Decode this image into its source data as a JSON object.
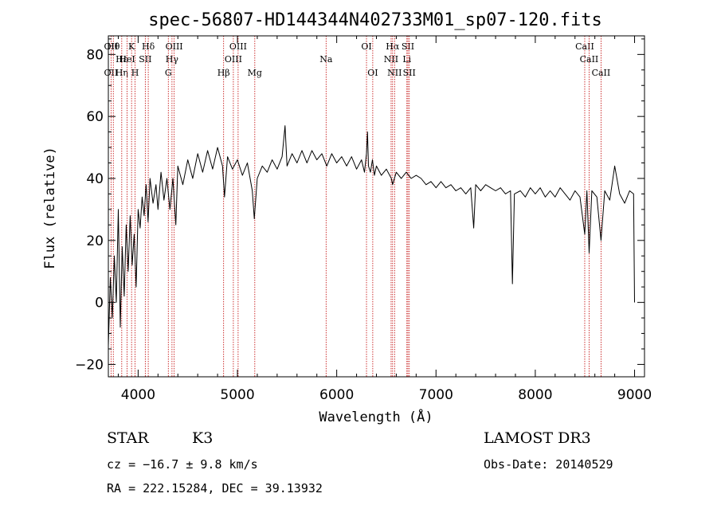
{
  "chart_data": {
    "type": "line",
    "title": "spec-56807-HD144344N402733M01_sp07-120.fits",
    "xlabel": "Wavelength (Å)",
    "ylabel": "Flux (relative)",
    "xlim": [
      3700,
      9100
    ],
    "ylim": [
      -24,
      86
    ],
    "xticks": [
      4000,
      5000,
      6000,
      7000,
      8000,
      9000
    ],
    "yticks": [
      -20,
      0,
      20,
      40,
      60,
      80
    ],
    "line_color": "#000000",
    "marker_color": "#c00000",
    "series": [
      {
        "name": "flux",
        "points": [
          [
            3700,
            -14
          ],
          [
            3720,
            8
          ],
          [
            3740,
            -5
          ],
          [
            3760,
            15
          ],
          [
            3780,
            0
          ],
          [
            3800,
            30
          ],
          [
            3820,
            -8
          ],
          [
            3840,
            18
          ],
          [
            3860,
            2
          ],
          [
            3880,
            25
          ],
          [
            3900,
            10
          ],
          [
            3920,
            28
          ],
          [
            3940,
            12
          ],
          [
            3960,
            22
          ],
          [
            3980,
            5
          ],
          [
            4000,
            30
          ],
          [
            4020,
            24
          ],
          [
            4040,
            34
          ],
          [
            4060,
            28
          ],
          [
            4080,
            38
          ],
          [
            4100,
            26
          ],
          [
            4120,
            40
          ],
          [
            4150,
            32
          ],
          [
            4180,
            38
          ],
          [
            4200,
            30
          ],
          [
            4230,
            42
          ],
          [
            4260,
            33
          ],
          [
            4290,
            40
          ],
          [
            4320,
            30
          ],
          [
            4350,
            40
          ],
          [
            4380,
            25
          ],
          [
            4400,
            44
          ],
          [
            4450,
            38
          ],
          [
            4500,
            46
          ],
          [
            4550,
            40
          ],
          [
            4600,
            48
          ],
          [
            4650,
            42
          ],
          [
            4700,
            49
          ],
          [
            4750,
            43
          ],
          [
            4800,
            50
          ],
          [
            4850,
            44
          ],
          [
            4870,
            34
          ],
          [
            4900,
            47
          ],
          [
            4950,
            43
          ],
          [
            5000,
            46
          ],
          [
            5050,
            41
          ],
          [
            5100,
            45
          ],
          [
            5150,
            36
          ],
          [
            5170,
            27
          ],
          [
            5200,
            40
          ],
          [
            5250,
            44
          ],
          [
            5300,
            42
          ],
          [
            5350,
            46
          ],
          [
            5400,
            43
          ],
          [
            5450,
            47
          ],
          [
            5480,
            57
          ],
          [
            5500,
            44
          ],
          [
            5550,
            48
          ],
          [
            5600,
            45
          ],
          [
            5650,
            49
          ],
          [
            5700,
            45
          ],
          [
            5750,
            49
          ],
          [
            5800,
            46
          ],
          [
            5850,
            48
          ],
          [
            5900,
            44
          ],
          [
            5950,
            48
          ],
          [
            6000,
            45
          ],
          [
            6050,
            47
          ],
          [
            6100,
            44
          ],
          [
            6150,
            47
          ],
          [
            6200,
            43
          ],
          [
            6250,
            46
          ],
          [
            6280,
            42
          ],
          [
            6300,
            48
          ],
          [
            6310,
            55
          ],
          [
            6320,
            44
          ],
          [
            6340,
            42
          ],
          [
            6360,
            46
          ],
          [
            6380,
            41
          ],
          [
            6400,
            44
          ],
          [
            6450,
            41
          ],
          [
            6500,
            43
          ],
          [
            6550,
            40
          ],
          [
            6563,
            38
          ],
          [
            6600,
            42
          ],
          [
            6650,
            40
          ],
          [
            6700,
            42
          ],
          [
            6750,
            40
          ],
          [
            6800,
            41
          ],
          [
            6850,
            40
          ],
          [
            6900,
            38
          ],
          [
            6950,
            39
          ],
          [
            7000,
            37
          ],
          [
            7050,
            39
          ],
          [
            7100,
            37
          ],
          [
            7150,
            38
          ],
          [
            7200,
            36
          ],
          [
            7250,
            37
          ],
          [
            7300,
            35
          ],
          [
            7350,
            37
          ],
          [
            7380,
            24
          ],
          [
            7400,
            38
          ],
          [
            7450,
            36
          ],
          [
            7500,
            38
          ],
          [
            7550,
            37
          ],
          [
            7600,
            36
          ],
          [
            7650,
            37
          ],
          [
            7700,
            35
          ],
          [
            7750,
            36
          ],
          [
            7770,
            6
          ],
          [
            7790,
            35
          ],
          [
            7850,
            36
          ],
          [
            7900,
            34
          ],
          [
            7950,
            37
          ],
          [
            8000,
            35
          ],
          [
            8050,
            37
          ],
          [
            8100,
            34
          ],
          [
            8150,
            36
          ],
          [
            8200,
            34
          ],
          [
            8250,
            37
          ],
          [
            8300,
            35
          ],
          [
            8350,
            33
          ],
          [
            8400,
            36
          ],
          [
            8450,
            34
          ],
          [
            8498,
            22
          ],
          [
            8520,
            36
          ],
          [
            8542,
            16
          ],
          [
            8570,
            36
          ],
          [
            8620,
            34
          ],
          [
            8662,
            20
          ],
          [
            8700,
            36
          ],
          [
            8750,
            33
          ],
          [
            8800,
            44
          ],
          [
            8850,
            35
          ],
          [
            8900,
            32
          ],
          [
            8950,
            36
          ],
          [
            8990,
            35
          ],
          [
            9000,
            0
          ]
        ]
      }
    ],
    "line_markers": [
      {
        "wavelength": 3727,
        "top": "OII",
        "mid": "",
        "bot": "OII"
      },
      {
        "wavelength": 3750,
        "top": "Hθ",
        "mid": "",
        "bot": ""
      },
      {
        "wavelength": 3835,
        "top": "",
        "mid": "Hε",
        "bot": "Hη"
      },
      {
        "wavelength": 3889,
        "top": "",
        "mid": "HeI",
        "bot": ""
      },
      {
        "wavelength": 3934,
        "top": "K",
        "mid": "",
        "bot": ""
      },
      {
        "wavelength": 3969,
        "top": "",
        "mid": "",
        "bot": "H"
      },
      {
        "wavelength": 4072,
        "top": "",
        "mid": "SII",
        "bot": ""
      },
      {
        "wavelength": 4102,
        "top": "Hδ",
        "mid": "",
        "bot": ""
      },
      {
        "wavelength": 4304,
        "top": "",
        "mid": "",
        "bot": "G"
      },
      {
        "wavelength": 4341,
        "top": "",
        "mid": "Hγ",
        "bot": ""
      },
      {
        "wavelength": 4363,
        "top": "OIII",
        "mid": "",
        "bot": ""
      },
      {
        "wavelength": 4861,
        "top": "",
        "mid": "",
        "bot": "Hβ"
      },
      {
        "wavelength": 4959,
        "top": "",
        "mid": "OIII",
        "bot": ""
      },
      {
        "wavelength": 5007,
        "top": "OIII",
        "mid": "",
        "bot": ""
      },
      {
        "wavelength": 5175,
        "top": "",
        "mid": "",
        "bot": "Mg"
      },
      {
        "wavelength": 5893,
        "top": "",
        "mid": "Na",
        "bot": ""
      },
      {
        "wavelength": 6300,
        "top": "OI",
        "mid": "",
        "bot": ""
      },
      {
        "wavelength": 6363,
        "top": "",
        "mid": "",
        "bot": "OI"
      },
      {
        "wavelength": 6548,
        "top": "",
        "mid": "NII",
        "bot": ""
      },
      {
        "wavelength": 6563,
        "top": "Hα",
        "mid": "",
        "bot": ""
      },
      {
        "wavelength": 6583,
        "top": "",
        "mid": "",
        "bot": "NII"
      },
      {
        "wavelength": 6707,
        "top": "",
        "mid": "Li",
        "bot": ""
      },
      {
        "wavelength": 6717,
        "top": "SII",
        "mid": "",
        "bot": ""
      },
      {
        "wavelength": 6731,
        "top": "",
        "mid": "",
        "bot": "SII"
      },
      {
        "wavelength": 8498,
        "top": "CaII",
        "mid": "",
        "bot": ""
      },
      {
        "wavelength": 8542,
        "top": "",
        "mid": "CaII",
        "bot": ""
      },
      {
        "wavelength": 8662,
        "top": "",
        "mid": "",
        "bot": "CaII"
      }
    ]
  },
  "info": {
    "class": "STAR",
    "subclass": "K3",
    "survey": "LAMOST DR3",
    "cz": "cz = −16.7 ± 9.8 km/s",
    "obs_date": "Obs-Date: 20140529",
    "coords": "RA = 222.15284, DEC =  39.13932"
  }
}
